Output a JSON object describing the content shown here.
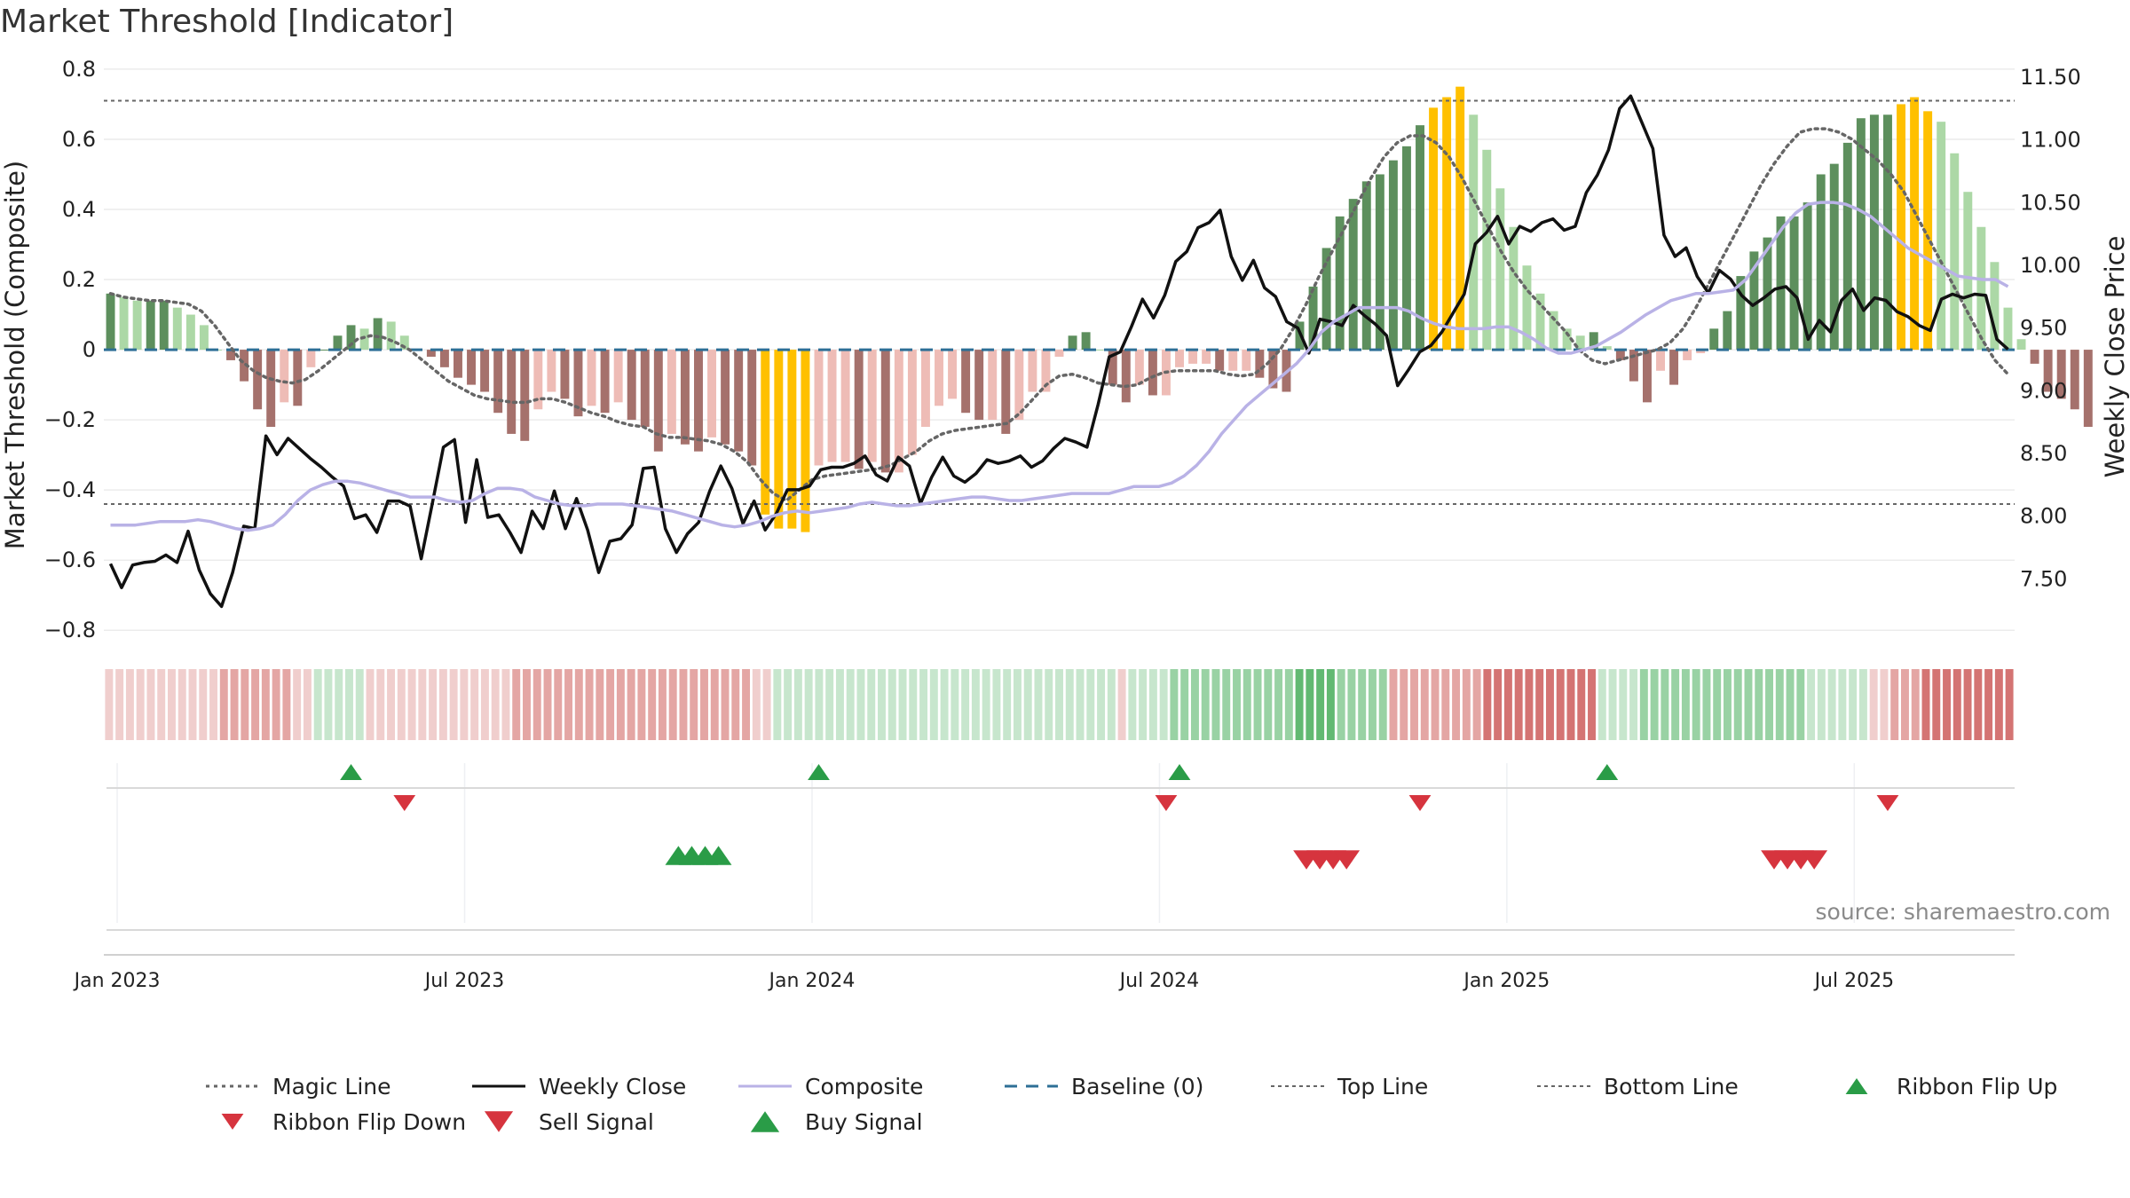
{
  "title": "Market Threshold [Indicator]",
  "source": "source: sharemaestro.com",
  "colors": {
    "weekly_close": "#111111",
    "composite": "#b9b2e6",
    "magic_line": "#666666",
    "baseline": "#2d6f96",
    "threshold_lines": "#666666",
    "bar_pos_light": "#acd8a6",
    "bar_pos_dark": "#5d8f5d",
    "bar_neg_light": "#eebcb6",
    "bar_neg_dark": "#a5716c",
    "bar_extreme": "#ffc000",
    "ribbon_green": "#46ad59",
    "ribbon_red": "#cd5c5a",
    "signal_green": "#2a9c47",
    "signal_red": "#d6343e",
    "grid": "#ececec"
  },
  "chart_data": {
    "type": "bar",
    "title": "Market Threshold [Indicator]",
    "ylabel": "Market Threshold (Composite)",
    "ylabel_right": "Weekly Close Price",
    "ylim": [
      -0.85,
      0.82
    ],
    "ylim_right": [
      6.95,
      11.62
    ],
    "yticks": [
      {
        "v": 0.8,
        "label": "0.8"
      },
      {
        "v": 0.6,
        "label": "0.6"
      },
      {
        "v": 0.4,
        "label": "0.4"
      },
      {
        "v": 0.2,
        "label": "0.2"
      },
      {
        "v": 0,
        "label": "0"
      },
      {
        "v": -0.2,
        "label": "−0.2"
      },
      {
        "v": -0.4,
        "label": "−0.4"
      },
      {
        "v": -0.6,
        "label": "−0.6"
      },
      {
        "v": -0.8,
        "label": "−0.8"
      }
    ],
    "yticks_right": [
      {
        "v": 11.5,
        "label": "11.50"
      },
      {
        "v": 11.0,
        "label": "11.00"
      },
      {
        "v": 10.5,
        "label": "10.50"
      },
      {
        "v": 10.0,
        "label": "10.00"
      },
      {
        "v": 9.5,
        "label": "9.50"
      },
      {
        "v": 9.0,
        "label": "9.00"
      },
      {
        "v": 8.5,
        "label": "8.50"
      },
      {
        "v": 8.0,
        "label": "8.00"
      },
      {
        "v": 7.5,
        "label": "7.50"
      }
    ],
    "xticks": [
      {
        "week": 1,
        "label": "Jan 2023"
      },
      {
        "week": 27,
        "label": "Jul 2023"
      },
      {
        "week": 53,
        "label": "Jan 2024"
      },
      {
        "week": 79,
        "label": "Jul 2024"
      },
      {
        "week": 105,
        "label": "Jan 2025"
      },
      {
        "week": 131,
        "label": "Jul 2025"
      }
    ],
    "weeks_total": 143,
    "top_line": 0.71,
    "bottom_line": -0.44,
    "baseline": 0,
    "bars": [
      0.16,
      0.15,
      0.14,
      0.14,
      0.14,
      0.12,
      0.1,
      0.07,
      0.0,
      -0.03,
      -0.09,
      -0.17,
      -0.22,
      -0.15,
      -0.16,
      -0.05,
      0.0,
      0.04,
      0.07,
      0.06,
      0.09,
      0.08,
      0.04,
      0.0,
      -0.02,
      -0.05,
      -0.08,
      -0.1,
      -0.12,
      -0.18,
      -0.24,
      -0.26,
      -0.17,
      -0.12,
      -0.14,
      -0.19,
      -0.16,
      -0.18,
      -0.15,
      -0.2,
      -0.22,
      -0.29,
      -0.24,
      -0.27,
      -0.29,
      -0.25,
      -0.27,
      -0.29,
      -0.33,
      -0.47,
      -0.51,
      -0.51,
      -0.52,
      -0.33,
      -0.32,
      -0.32,
      -0.34,
      -0.32,
      -0.35,
      -0.35,
      -0.3,
      -0.22,
      -0.16,
      -0.14,
      -0.18,
      -0.2,
      -0.2,
      -0.24,
      -0.2,
      -0.12,
      -0.12,
      -0.02,
      0.04,
      0.05,
      0.0,
      -0.1,
      -0.15,
      -0.1,
      -0.13,
      -0.13,
      -0.05,
      -0.04,
      -0.04,
      -0.06,
      -0.06,
      -0.06,
      -0.08,
      -0.11,
      -0.12,
      0.08,
      0.18,
      0.29,
      0.38,
      0.43,
      0.48,
      0.5,
      0.54,
      0.58,
      0.64,
      0.69,
      0.72,
      0.75,
      0.67,
      0.57,
      0.46,
      0.35,
      0.24,
      0.16,
      0.11,
      0.06,
      0.04,
      0.05,
      0.01,
      -0.03,
      -0.09,
      -0.15,
      -0.06,
      -0.1,
      -0.03,
      -0.01,
      0.06,
      0.11,
      0.21,
      0.28,
      0.32,
      0.38,
      0.38,
      0.42,
      0.5,
      0.53,
      0.59,
      0.66,
      0.67,
      0.67,
      0.7,
      0.72,
      0.68,
      0.65,
      0.56,
      0.45,
      0.35,
      0.25,
      0.12,
      0.03,
      -0.04,
      -0.12,
      -0.14,
      -0.17,
      -0.22
    ],
    "series": [
      {
        "name": "Magic Line",
        "axis": "left",
        "values": [
          0.16,
          0.15,
          0.145,
          0.14,
          0.14,
          0.135,
          0.13,
          0.11,
          0.07,
          0.02,
          -0.03,
          -0.06,
          -0.08,
          -0.09,
          -0.095,
          -0.085,
          -0.06,
          -0.03,
          0.0,
          0.03,
          0.04,
          0.035,
          0.02,
          0.0,
          -0.03,
          -0.06,
          -0.09,
          -0.11,
          -0.13,
          -0.14,
          -0.145,
          -0.15,
          -0.15,
          -0.14,
          -0.14,
          -0.15,
          -0.165,
          -0.18,
          -0.19,
          -0.205,
          -0.215,
          -0.22,
          -0.24,
          -0.25,
          -0.25,
          -0.255,
          -0.26,
          -0.27,
          -0.29,
          -0.32,
          -0.37,
          -0.41,
          -0.43,
          -0.4,
          -0.37,
          -0.36,
          -0.355,
          -0.35,
          -0.345,
          -0.34,
          -0.33,
          -0.31,
          -0.29,
          -0.26,
          -0.24,
          -0.23,
          -0.225,
          -0.22,
          -0.215,
          -0.21,
          -0.18,
          -0.14,
          -0.1,
          -0.075,
          -0.07,
          -0.08,
          -0.095,
          -0.1,
          -0.105,
          -0.1,
          -0.08,
          -0.065,
          -0.06,
          -0.06,
          -0.06,
          -0.06,
          -0.07,
          -0.075,
          -0.07,
          -0.04,
          0.0,
          0.06,
          0.13,
          0.21,
          0.28,
          0.35,
          0.42,
          0.49,
          0.55,
          0.59,
          0.61,
          0.61,
          0.59,
          0.55,
          0.49,
          0.42,
          0.35,
          0.28,
          0.22,
          0.17,
          0.13,
          0.09,
          0.05,
          0.0,
          -0.03,
          -0.04,
          -0.03,
          -0.02,
          -0.01,
          0.0,
          0.02,
          0.06,
          0.12,
          0.19,
          0.26,
          0.33,
          0.4,
          0.47,
          0.53,
          0.58,
          0.62,
          0.63,
          0.63,
          0.62,
          0.6,
          0.57,
          0.54,
          0.5,
          0.45,
          0.38,
          0.31,
          0.24,
          0.17,
          0.1,
          0.03,
          -0.03,
          -0.07
        ]
      },
      {
        "name": "Weekly Close",
        "axis": "right",
        "values": [
          7.62,
          7.43,
          7.61,
          7.63,
          7.64,
          7.69,
          7.63,
          7.88,
          7.57,
          7.38,
          7.28,
          7.55,
          7.92,
          7.9,
          8.64,
          8.49,
          8.62,
          8.54,
          8.46,
          8.39,
          8.31,
          8.24,
          7.98,
          8.01,
          7.87,
          8.12,
          8.12,
          8.08,
          7.66,
          8.1,
          8.55,
          8.61,
          7.95,
          8.45,
          7.99,
          8.01,
          7.87,
          7.71,
          8.04,
          7.9,
          8.2,
          7.9,
          8.14,
          7.89,
          7.55,
          7.8,
          7.82,
          7.93,
          8.38,
          8.39,
          7.9,
          7.71,
          7.86,
          7.95,
          8.2,
          8.4,
          8.22,
          7.94,
          8.12,
          7.89,
          8.02,
          8.21,
          8.21,
          8.24,
          8.37,
          8.39,
          8.39,
          8.42,
          8.48,
          8.33,
          8.28,
          8.47,
          8.4,
          8.1,
          8.31,
          8.47,
          8.32,
          8.27,
          8.34,
          8.45,
          8.42,
          8.44,
          8.48,
          8.39,
          8.44,
          8.54,
          8.62,
          8.59,
          8.55,
          8.89,
          9.27,
          9.31,
          9.51,
          9.73,
          9.58,
          9.76,
          10.03,
          10.11,
          10.3,
          10.34,
          10.44,
          10.07,
          9.88,
          10.04,
          9.82,
          9.75,
          9.55,
          9.5,
          9.3,
          9.57,
          9.55,
          9.52,
          9.68,
          9.6,
          9.53,
          9.44,
          9.04,
          9.17,
          9.31,
          9.36,
          9.47,
          9.62,
          9.77,
          10.17,
          10.26,
          10.39,
          10.17,
          10.31,
          10.27,
          10.34,
          10.37,
          10.28,
          10.31,
          10.58,
          10.72,
          10.92,
          11.25,
          11.35,
          11.14,
          10.93,
          10.24,
          10.07,
          10.14,
          9.91,
          9.78,
          9.96,
          9.89,
          9.76,
          9.68,
          9.74,
          9.81,
          9.83,
          9.74,
          9.41,
          9.56,
          9.47,
          9.72,
          9.81,
          9.64,
          9.74,
          9.72,
          9.63,
          9.59,
          9.52,
          9.48,
          9.73,
          9.77,
          9.74,
          9.77,
          9.76,
          9.41,
          9.33
        ]
      },
      {
        "name": "Composite",
        "axis": "left",
        "values": [
          -0.5,
          -0.5,
          -0.5,
          -0.495,
          -0.49,
          -0.49,
          -0.49,
          -0.485,
          -0.49,
          -0.5,
          -0.51,
          -0.515,
          -0.51,
          -0.5,
          -0.47,
          -0.43,
          -0.4,
          -0.385,
          -0.375,
          -0.375,
          -0.38,
          -0.39,
          -0.4,
          -0.41,
          -0.42,
          -0.42,
          -0.42,
          -0.43,
          -0.435,
          -0.43,
          -0.41,
          -0.395,
          -0.395,
          -0.4,
          -0.42,
          -0.43,
          -0.44,
          -0.445,
          -0.445,
          -0.44,
          -0.44,
          -0.44,
          -0.445,
          -0.45,
          -0.455,
          -0.46,
          -0.47,
          -0.48,
          -0.49,
          -0.5,
          -0.505,
          -0.5,
          -0.49,
          -0.475,
          -0.465,
          -0.46,
          -0.465,
          -0.46,
          -0.455,
          -0.45,
          -0.44,
          -0.435,
          -0.44,
          -0.445,
          -0.445,
          -0.44,
          -0.435,
          -0.43,
          -0.425,
          -0.42,
          -0.42,
          -0.425,
          -0.43,
          -0.43,
          -0.425,
          -0.42,
          -0.415,
          -0.41,
          -0.41,
          -0.41,
          -0.41,
          -0.4,
          -0.39,
          -0.39,
          -0.39,
          -0.38,
          -0.36,
          -0.33,
          -0.29,
          -0.24,
          -0.2,
          -0.16,
          -0.13,
          -0.1,
          -0.07,
          -0.04,
          0.0,
          0.05,
          0.08,
          0.1,
          0.12,
          0.12,
          0.12,
          0.12,
          0.11,
          0.09,
          0.075,
          0.065,
          0.06,
          0.06,
          0.06,
          0.065,
          0.065,
          0.05,
          0.03,
          0.005,
          -0.01,
          -0.01,
          0.0,
          0.01,
          0.03,
          0.05,
          0.075,
          0.1,
          0.12,
          0.14,
          0.15,
          0.16,
          0.16,
          0.165,
          0.17,
          0.2,
          0.25,
          0.3,
          0.35,
          0.39,
          0.415,
          0.42,
          0.42,
          0.415,
          0.4,
          0.38,
          0.35,
          0.32,
          0.29,
          0.27,
          0.25,
          0.23,
          0.21,
          0.205,
          0.2,
          0.2,
          0.18
        ]
      }
    ],
    "ribbon": [
      -1,
      -1,
      -1,
      -1,
      -1,
      -1,
      -1,
      -1,
      -1,
      -1,
      -1,
      -2,
      -2,
      -2,
      -2,
      -2,
      -2,
      -2,
      -1,
      -1,
      1,
      1,
      1,
      1,
      1,
      -1,
      -1,
      -1,
      -1,
      -1,
      -1,
      -1,
      -1,
      -1,
      -1,
      -1,
      -1,
      -1,
      -1,
      -2,
      -2,
      -2,
      -2,
      -2,
      -2,
      -2,
      -2,
      -2,
      -2,
      -2,
      -2,
      -2,
      -2,
      -2,
      -2,
      -2,
      -2,
      -2,
      -2,
      -2,
      -2,
      -2,
      -1,
      -1,
      1,
      1,
      1,
      1,
      1,
      1,
      1,
      1,
      1,
      1,
      1,
      1,
      1,
      1,
      1,
      1,
      1,
      1,
      1,
      1,
      1,
      1,
      1,
      1,
      1,
      1,
      1,
      1,
      1,
      1,
      1,
      1,
      1,
      -1,
      1,
      1,
      1,
      1,
      2,
      2,
      2,
      2,
      2,
      2,
      2,
      2,
      2,
      2,
      2,
      2,
      3,
      3,
      3,
      3,
      2,
      2,
      2,
      2,
      2,
      -2,
      -2,
      -2,
      -2,
      -2,
      -2,
      -2,
      -2,
      -2,
      -3,
      -3,
      -3,
      -3,
      -3,
      -3,
      -3,
      -3,
      -3,
      -3,
      -3,
      1,
      1,
      1,
      1,
      2,
      2,
      2,
      2,
      2,
      2,
      2,
      2,
      2,
      2,
      2,
      2,
      2,
      2,
      2,
      2,
      1,
      1,
      1,
      1,
      1,
      1,
      -1,
      -1,
      -2,
      -2,
      -2,
      -3,
      -3,
      -3,
      -3,
      -3,
      -3,
      -3,
      -3,
      -3
    ],
    "ribbon_flips_up": [
      18,
      53,
      80,
      112
    ],
    "ribbon_flips_down": [
      22,
      79,
      98,
      133
    ],
    "buy_signals": [
      42.5,
      43.5,
      44.5,
      45.5
    ],
    "sell_signals": [
      89.5,
      90.5,
      91.5,
      92.5,
      124.5,
      125.5,
      126.5,
      127.5
    ],
    "legend": [
      {
        "label": "Magic Line",
        "kind": "dotted",
        "color": "#666666"
      },
      {
        "label": "Weekly Close",
        "kind": "solid",
        "color": "#111111"
      },
      {
        "label": "Composite",
        "kind": "solid-light",
        "color": "#b9b2e6"
      },
      {
        "label": "Baseline (0)",
        "kind": "dashed",
        "color": "#2d6f96"
      },
      {
        "label": "Top Line",
        "kind": "dotted-thin",
        "color": "#666666"
      },
      {
        "label": "Bottom Line",
        "kind": "dotted-thin",
        "color": "#666666"
      },
      {
        "label": "Ribbon Flip Up",
        "kind": "tri-up",
        "color": "#2a9c47"
      },
      {
        "label": "Ribbon Flip Down",
        "kind": "tri-down",
        "color": "#d6343e"
      },
      {
        "label": "Sell Signal",
        "kind": "tri-down-big",
        "color": "#d6343e"
      },
      {
        "label": "Buy Signal",
        "kind": "tri-up-big",
        "color": "#2a9c47"
      }
    ],
    "legend_placement": "bottom",
    "grid": true
  }
}
